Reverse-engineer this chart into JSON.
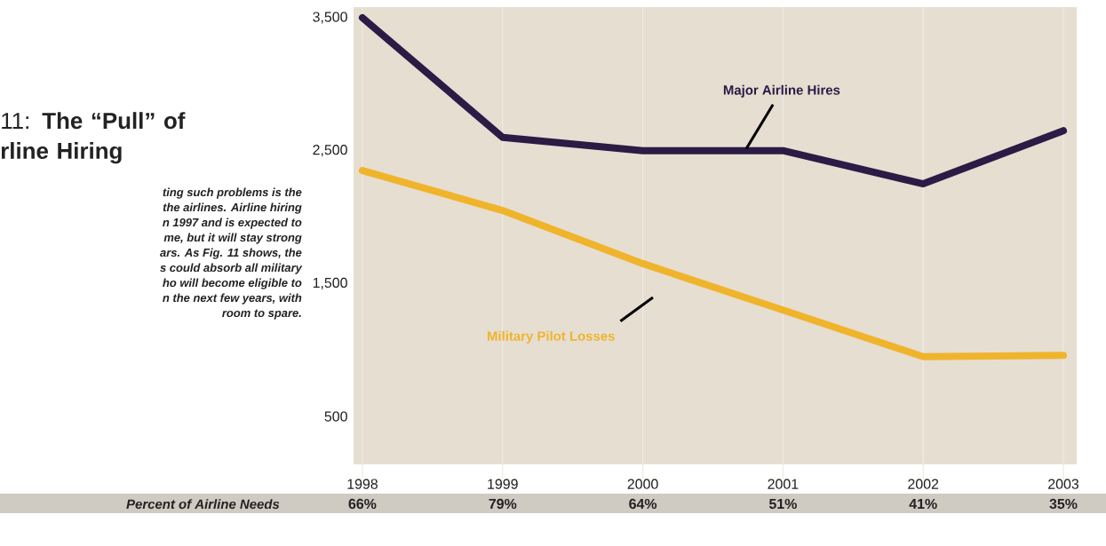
{
  "chart_data": {
    "type": "line",
    "title": "11: **The “Pull” of rline Hiring**",
    "categories": [
      "1998",
      "1999",
      "2000",
      "2001",
      "2002",
      "2003"
    ],
    "series": [
      {
        "name": "Major Airline Hires",
        "color": "#2b1b45",
        "values": [
          3500,
          2600,
          2500,
          2500,
          2250,
          2650
        ]
      },
      {
        "name": "Military Pilot Losses",
        "color": "#f0b42c",
        "values": [
          2350,
          2050,
          1650,
          1300,
          950,
          960
        ]
      }
    ],
    "ylim": [
      140,
      3580
    ],
    "yticks": [
      {
        "value": 500,
        "label": "500"
      },
      {
        "value": 1500,
        "label": "1,500"
      },
      {
        "value": 2500,
        "label": "2,500"
      },
      {
        "value": 3500,
        "label": "3,500"
      }
    ],
    "grid": "x",
    "annotations": [
      "ting such problems is the",
      "the airlines. Airline hiring",
      "n 1997 and is expected to",
      "me, but it will stay strong",
      "ars. As Fig. 11 shows, the",
      "s could absorb all military",
      "ho will become eligible to",
      "n the next few years, with",
      "room to spare.",
      "Percent of Airline Needs",
      "66%",
      "79%",
      "64%",
      "51%",
      "41%",
      "35%"
    ]
  }
}
